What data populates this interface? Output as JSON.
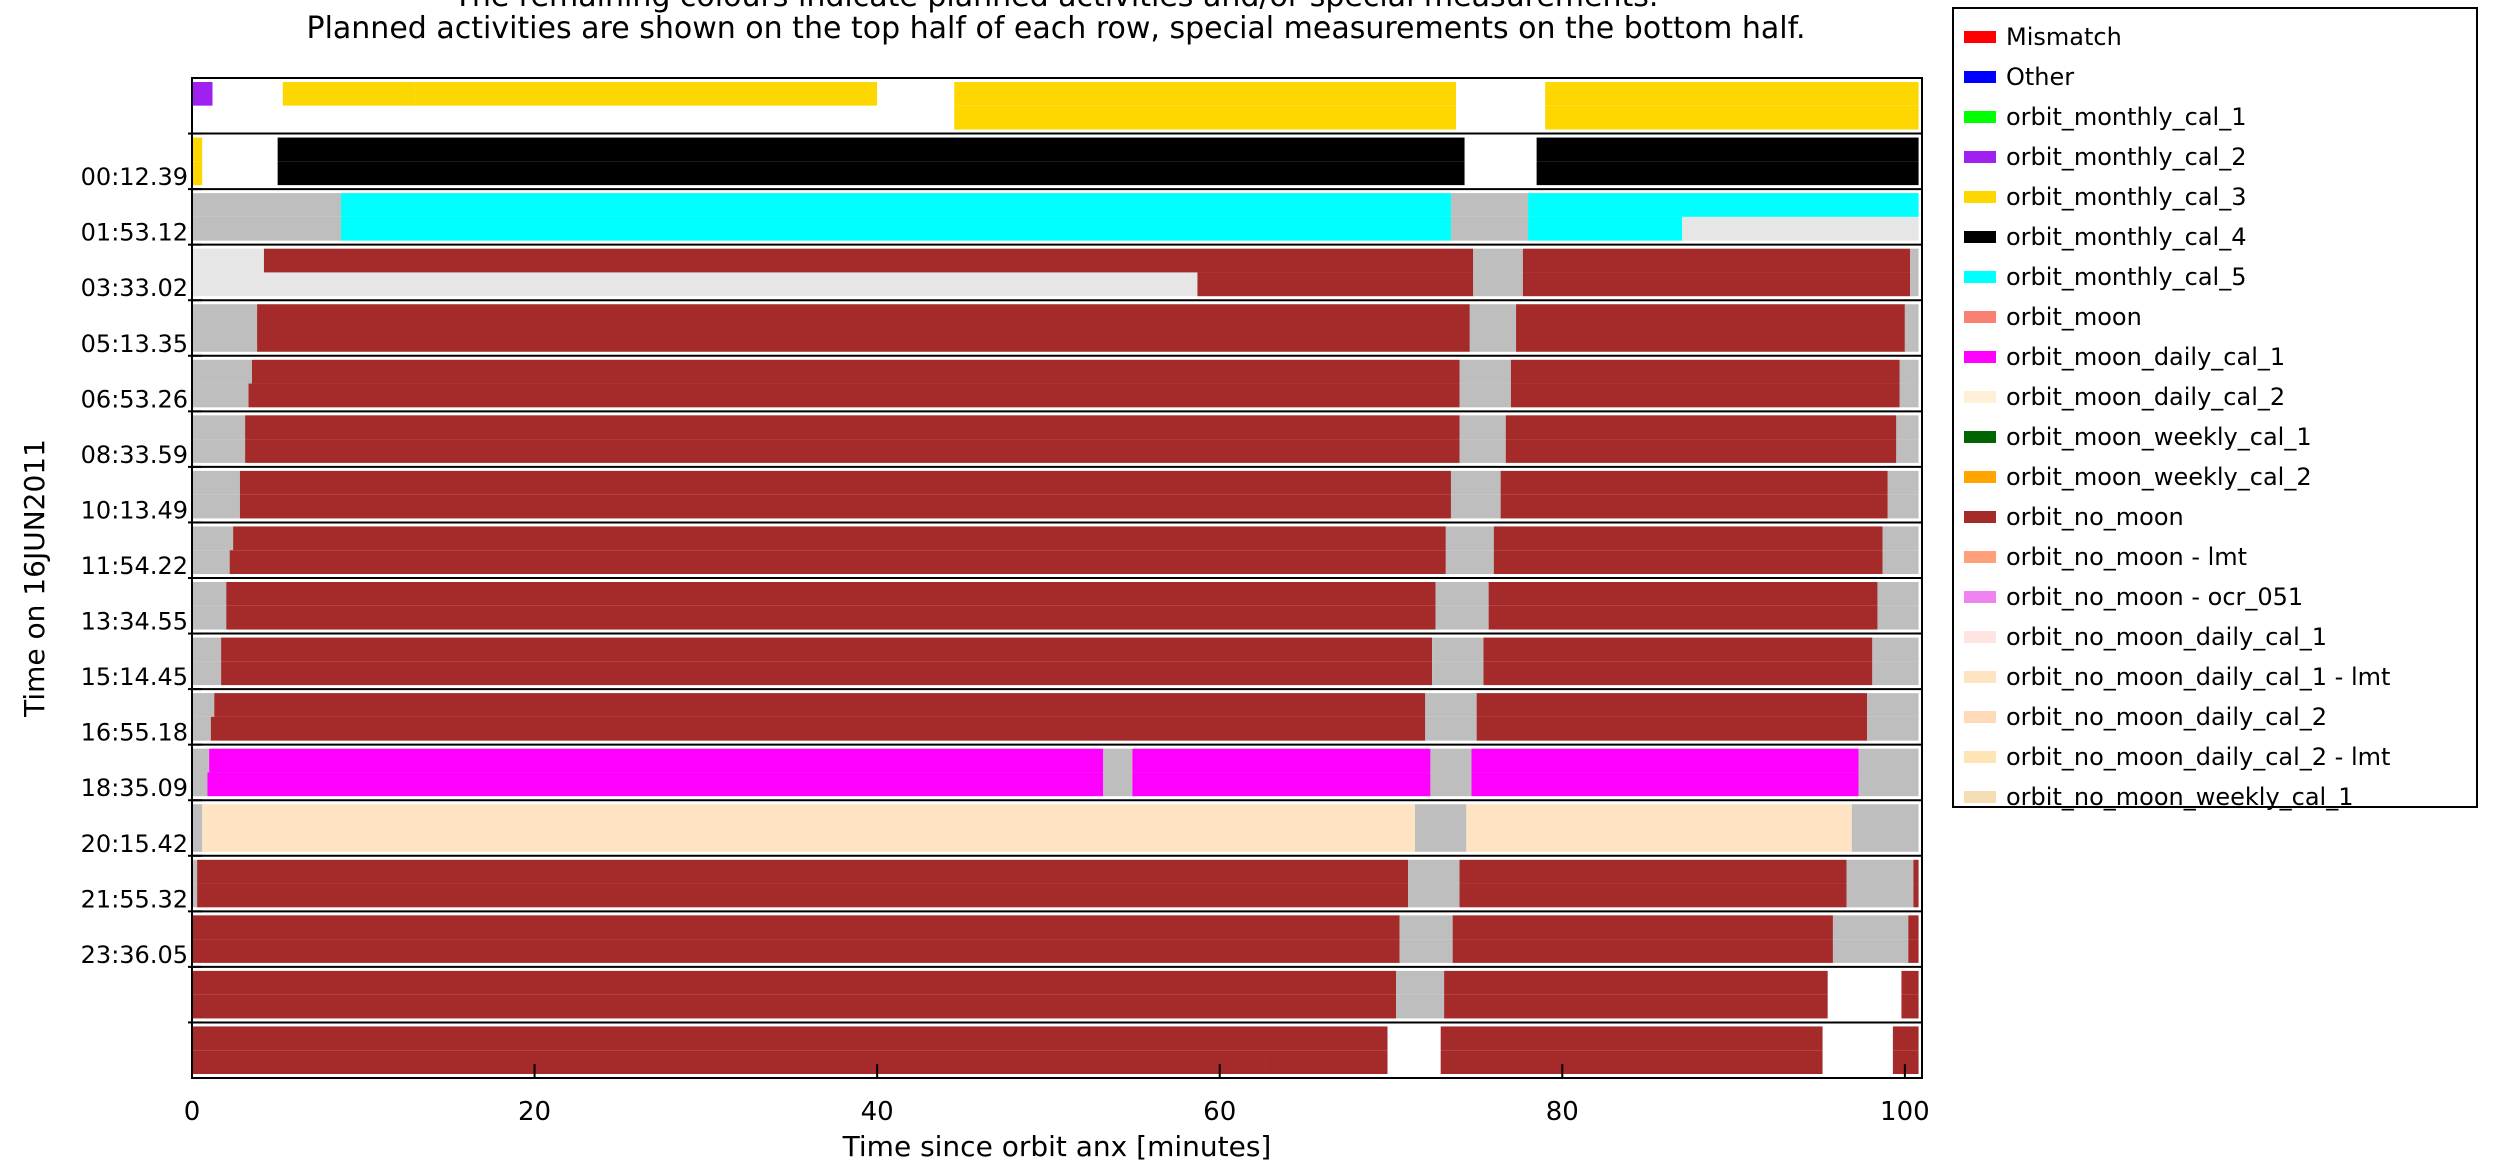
{
  "chart_data": {
    "type": "timeline",
    "title_lines": [
      "The remaining colours indicate planned activities and/or special measurements.",
      "Planned activities are shown on the top half of each row, special measurements on the bottom half."
    ],
    "xlabel": "Time since orbit anx [minutes]",
    "ylabel": "Time on 16JUN2011",
    "xlim": [
      0,
      101
    ],
    "x_ticks": [
      0,
      20,
      40,
      60,
      80,
      100
    ],
    "row_labels": [
      "",
      "00:12.39",
      "01:53.12",
      "03:33.02",
      "05:13.35",
      "06:53.26",
      "08:33.59",
      "10:13.49",
      "11:54.22",
      "13:34.55",
      "15:14.45",
      "16:55.18",
      "18:35.09",
      "20:15.42",
      "21:55.32",
      "23:36.05",
      "",
      ""
    ],
    "legend": [
      {
        "label": "Mismatch",
        "color": "#ff0000"
      },
      {
        "label": "Other",
        "color": "#0000ff"
      },
      {
        "label": "orbit_monthly_cal_1",
        "color": "#00ff00"
      },
      {
        "label": "orbit_monthly_cal_2",
        "color": "#a020f0"
      },
      {
        "label": "orbit_monthly_cal_3",
        "color": "#ffd700"
      },
      {
        "label": "orbit_monthly_cal_4",
        "color": "#000000"
      },
      {
        "label": "orbit_monthly_cal_5",
        "color": "#00ffff"
      },
      {
        "label": "orbit_moon",
        "color": "#fa8072"
      },
      {
        "label": "orbit_moon_daily_cal_1",
        "color": "#ff00ff"
      },
      {
        "label": "orbit_moon_daily_cal_2",
        "color": "#fff0d8"
      },
      {
        "label": "orbit_moon_weekly_cal_1",
        "color": "#006400"
      },
      {
        "label": "orbit_moon_weekly_cal_2",
        "color": "#ffa500"
      },
      {
        "label": "orbit_no_moon",
        "color": "#a52a2a"
      },
      {
        "label": "orbit_no_moon - lmt",
        "color": "#ffa07a"
      },
      {
        "label": "orbit_no_moon - ocr_051",
        "color": "#ee82ee"
      },
      {
        "label": "orbit_no_moon_daily_cal_1",
        "color": "#ffe4e1"
      },
      {
        "label": "orbit_no_moon_daily_cal_1 - lmt",
        "color": "#ffe4c4"
      },
      {
        "label": "orbit_no_moon_daily_cal_2",
        "color": "#ffdab9"
      },
      {
        "label": "orbit_no_moon_daily_cal_2 - lmt",
        "color": "#ffe4b5"
      },
      {
        "label": "orbit_no_moon_weekly_cal_1",
        "color": "#f5deb3"
      }
    ],
    "rows": [
      {
        "top": [
          [
            0,
            1.2,
            "#a020f0"
          ],
          [
            1.2,
            5.3,
            "#ffffff"
          ],
          [
            5.3,
            13,
            "#ffd700"
          ],
          [
            13,
            40,
            "#ffd700"
          ],
          [
            40,
            44.5,
            "#ffffff"
          ],
          [
            44.5,
            73.8,
            "#ffd700"
          ],
          [
            73.8,
            79,
            "#ffffff"
          ],
          [
            79,
            100.8,
            "#ffd700"
          ]
        ],
        "bottom": [
          [
            0,
            44.5,
            "#ffffff"
          ],
          [
            44.5,
            73.8,
            "#ffd700"
          ],
          [
            73.8,
            79,
            "#ffffff"
          ],
          [
            79,
            100.8,
            "#ffd700"
          ]
        ]
      },
      {
        "top": [
          [
            0,
            0.6,
            "#ffd700"
          ],
          [
            0.6,
            5,
            "#ffffff"
          ],
          [
            5,
            74.3,
            "#000000"
          ],
          [
            74.3,
            78.5,
            "#ffffff"
          ],
          [
            78.5,
            100.8,
            "#000000"
          ]
        ],
        "bottom": [
          [
            0,
            0.6,
            "#ffd700"
          ],
          [
            0.6,
            5,
            "#ffffff"
          ],
          [
            5,
            74.3,
            "#000000"
          ],
          [
            74.3,
            78.5,
            "#ffffff"
          ],
          [
            78.5,
            100.8,
            "#000000"
          ]
        ]
      },
      {
        "top": [
          [
            0,
            8.7,
            "#bebebe"
          ],
          [
            8.7,
            73.5,
            "#00ffff"
          ],
          [
            73.5,
            78,
            "#bebebe"
          ],
          [
            78,
            100.8,
            "#00ffff"
          ]
        ],
        "bottom": [
          [
            0,
            8.7,
            "#bebebe"
          ],
          [
            8.7,
            73.5,
            "#00ffff"
          ],
          [
            73.5,
            78,
            "#bebebe"
          ],
          [
            78,
            87,
            "#00ffff"
          ],
          [
            87,
            100.8,
            "#e6e6e6"
          ]
        ]
      },
      {
        "top": [
          [
            0,
            4.2,
            "#e6e6e6"
          ],
          [
            4.2,
            74.8,
            "#a52a2a"
          ],
          [
            74.8,
            77.7,
            "#bebebe"
          ],
          [
            77.7,
            100.3,
            "#a52a2a"
          ],
          [
            100.3,
            100.8,
            "#bebebe"
          ]
        ],
        "bottom": [
          [
            0,
            58.7,
            "#e6e6e6"
          ],
          [
            58.7,
            74.8,
            "#a52a2a"
          ],
          [
            74.8,
            77.7,
            "#bebebe"
          ],
          [
            77.7,
            100.3,
            "#a52a2a"
          ],
          [
            100.3,
            100.8,
            "#bebebe"
          ]
        ]
      },
      {
        "top": [
          [
            0,
            3.8,
            "#bebebe"
          ],
          [
            3.8,
            74.6,
            "#a52a2a"
          ],
          [
            74.6,
            77.3,
            "#bebebe"
          ],
          [
            77.3,
            100,
            "#a52a2a"
          ],
          [
            100,
            100.8,
            "#bebebe"
          ]
        ],
        "bottom": [
          [
            0,
            3.8,
            "#bebebe"
          ],
          [
            3.8,
            74.6,
            "#a52a2a"
          ],
          [
            74.6,
            77.3,
            "#bebebe"
          ],
          [
            77.3,
            100,
            "#a52a2a"
          ],
          [
            100,
            100.8,
            "#bebebe"
          ]
        ]
      },
      {
        "top": [
          [
            0,
            3.5,
            "#bebebe"
          ],
          [
            3.5,
            74,
            "#a52a2a"
          ],
          [
            74,
            77,
            "#bebebe"
          ],
          [
            77,
            99.7,
            "#a52a2a"
          ],
          [
            99.7,
            100.8,
            "#bebebe"
          ]
        ],
        "bottom": [
          [
            0,
            3.3,
            "#bebebe"
          ],
          [
            3.3,
            74,
            "#a52a2a"
          ],
          [
            74,
            77,
            "#bebebe"
          ],
          [
            77,
            99.7,
            "#a52a2a"
          ],
          [
            99.7,
            100.8,
            "#bebebe"
          ]
        ]
      },
      {
        "top": [
          [
            0,
            3.1,
            "#bebebe"
          ],
          [
            3.1,
            74,
            "#a52a2a"
          ],
          [
            74,
            76.7,
            "#bebebe"
          ],
          [
            76.7,
            99.5,
            "#a52a2a"
          ],
          [
            99.5,
            100.8,
            "#bebebe"
          ]
        ],
        "bottom": [
          [
            0,
            3.1,
            "#bebebe"
          ],
          [
            3.1,
            74,
            "#a52a2a"
          ],
          [
            74,
            76.7,
            "#bebebe"
          ],
          [
            76.7,
            99.5,
            "#a52a2a"
          ],
          [
            99.5,
            100.8,
            "#bebebe"
          ]
        ]
      },
      {
        "top": [
          [
            0,
            2.8,
            "#bebebe"
          ],
          [
            2.8,
            73.5,
            "#a52a2a"
          ],
          [
            73.5,
            76.4,
            "#bebebe"
          ],
          [
            76.4,
            99,
            "#a52a2a"
          ],
          [
            99,
            100.8,
            "#bebebe"
          ]
        ],
        "bottom": [
          [
            0,
            2.8,
            "#bebebe"
          ],
          [
            2.8,
            73.5,
            "#a52a2a"
          ],
          [
            73.5,
            76.4,
            "#bebebe"
          ],
          [
            76.4,
            99,
            "#a52a2a"
          ],
          [
            99,
            100.8,
            "#bebebe"
          ]
        ]
      },
      {
        "top": [
          [
            0,
            2.4,
            "#bebebe"
          ],
          [
            2.4,
            73.2,
            "#a52a2a"
          ],
          [
            73.2,
            76,
            "#bebebe"
          ],
          [
            76,
            98.7,
            "#a52a2a"
          ],
          [
            98.7,
            100.8,
            "#bebebe"
          ]
        ],
        "bottom": [
          [
            0,
            2.2,
            "#bebebe"
          ],
          [
            2.2,
            73.2,
            "#a52a2a"
          ],
          [
            73.2,
            76,
            "#bebebe"
          ],
          [
            76,
            98.7,
            "#a52a2a"
          ],
          [
            98.7,
            100.8,
            "#bebebe"
          ]
        ]
      },
      {
        "top": [
          [
            0,
            2,
            "#bebebe"
          ],
          [
            2,
            72.6,
            "#a52a2a"
          ],
          [
            72.6,
            75.7,
            "#bebebe"
          ],
          [
            75.7,
            98.4,
            "#a52a2a"
          ],
          [
            98.4,
            100.8,
            "#bebebe"
          ]
        ],
        "bottom": [
          [
            0,
            2,
            "#bebebe"
          ],
          [
            2,
            72.6,
            "#a52a2a"
          ],
          [
            72.6,
            75.7,
            "#bebebe"
          ],
          [
            75.7,
            98.4,
            "#a52a2a"
          ],
          [
            98.4,
            100.8,
            "#bebebe"
          ]
        ]
      },
      {
        "top": [
          [
            0,
            1.7,
            "#bebebe"
          ],
          [
            1.7,
            72.4,
            "#a52a2a"
          ],
          [
            72.4,
            75.4,
            "#bebebe"
          ],
          [
            75.4,
            98.1,
            "#a52a2a"
          ],
          [
            98.1,
            100.8,
            "#bebebe"
          ]
        ],
        "bottom": [
          [
            0,
            1.7,
            "#bebebe"
          ],
          [
            1.7,
            72.4,
            "#a52a2a"
          ],
          [
            72.4,
            75.4,
            "#bebebe"
          ],
          [
            75.4,
            98.1,
            "#a52a2a"
          ],
          [
            98.1,
            100.8,
            "#bebebe"
          ]
        ]
      },
      {
        "top": [
          [
            0,
            1.3,
            "#bebebe"
          ],
          [
            1.3,
            72,
            "#a52a2a"
          ],
          [
            72,
            75,
            "#bebebe"
          ],
          [
            75,
            97.8,
            "#a52a2a"
          ],
          [
            97.8,
            100.8,
            "#bebebe"
          ]
        ],
        "bottom": [
          [
            0,
            1.1,
            "#bebebe"
          ],
          [
            1.1,
            72,
            "#a52a2a"
          ],
          [
            72,
            75,
            "#bebebe"
          ],
          [
            75,
            97.8,
            "#a52a2a"
          ],
          [
            97.8,
            100.8,
            "#bebebe"
          ]
        ]
      },
      {
        "top": [
          [
            0,
            1,
            "#bebebe"
          ],
          [
            1,
            53.2,
            "#ff00ff"
          ],
          [
            53.2,
            54.9,
            "#bebebe"
          ],
          [
            54.9,
            72.3,
            "#ff00ff"
          ],
          [
            72.3,
            74.7,
            "#bebebe"
          ],
          [
            74.7,
            97.3,
            "#ff00ff"
          ],
          [
            97.3,
            100.8,
            "#bebebe"
          ]
        ],
        "bottom": [
          [
            0,
            0.9,
            "#bebebe"
          ],
          [
            0.9,
            53.2,
            "#ff00ff"
          ],
          [
            53.2,
            54.9,
            "#bebebe"
          ],
          [
            54.9,
            72.3,
            "#ff00ff"
          ],
          [
            72.3,
            74.7,
            "#bebebe"
          ],
          [
            74.7,
            97.3,
            "#ff00ff"
          ],
          [
            97.3,
            100.8,
            "#bebebe"
          ]
        ]
      },
      {
        "top": [
          [
            0,
            0.6,
            "#bebebe"
          ],
          [
            0.6,
            71.4,
            "#ffe4c4"
          ],
          [
            71.4,
            74.4,
            "#bebebe"
          ],
          [
            74.4,
            96.9,
            "#ffe4c4"
          ],
          [
            96.9,
            100.8,
            "#bebebe"
          ]
        ],
        "bottom": [
          [
            0,
            0.6,
            "#bebebe"
          ],
          [
            0.6,
            71.4,
            "#ffe4c4"
          ],
          [
            71.4,
            74.4,
            "#bebebe"
          ],
          [
            74.4,
            96.9,
            "#ffe4c4"
          ],
          [
            96.9,
            100.8,
            "#bebebe"
          ]
        ]
      },
      {
        "top": [
          [
            0,
            0.3,
            "#bebebe"
          ],
          [
            0.3,
            71,
            "#a52a2a"
          ],
          [
            71,
            74,
            "#bebebe"
          ],
          [
            74,
            96.6,
            "#a52a2a"
          ],
          [
            96.6,
            100.5,
            "#bebebe"
          ],
          [
            100.5,
            100.8,
            "#a52a2a"
          ]
        ],
        "bottom": [
          [
            0,
            0.3,
            "#bebebe"
          ],
          [
            0.3,
            71,
            "#a52a2a"
          ],
          [
            71,
            74,
            "#bebebe"
          ],
          [
            74,
            96.6,
            "#a52a2a"
          ],
          [
            96.6,
            100.5,
            "#bebebe"
          ],
          [
            100.5,
            100.8,
            "#a52a2a"
          ]
        ]
      },
      {
        "top": [
          [
            0,
            70.5,
            "#a52a2a"
          ],
          [
            70.5,
            73.6,
            "#bebebe"
          ],
          [
            73.6,
            95.8,
            "#a52a2a"
          ],
          [
            95.8,
            100.2,
            "#bebebe"
          ],
          [
            100.2,
            100.8,
            "#a52a2a"
          ]
        ],
        "bottom": [
          [
            0,
            70.5,
            "#a52a2a"
          ],
          [
            70.5,
            73.6,
            "#bebebe"
          ],
          [
            73.6,
            95.8,
            "#a52a2a"
          ],
          [
            95.8,
            100.2,
            "#bebebe"
          ],
          [
            100.2,
            100.8,
            "#a52a2a"
          ]
        ]
      },
      {
        "top": [
          [
            0,
            70.3,
            "#a52a2a"
          ],
          [
            70.3,
            73.1,
            "#bebebe"
          ],
          [
            73.1,
            95.5,
            "#a52a2a"
          ],
          [
            95.5,
            99.8,
            "#ffffff"
          ],
          [
            99.8,
            100.8,
            "#a52a2a"
          ]
        ],
        "bottom": [
          [
            0,
            70.3,
            "#a52a2a"
          ],
          [
            70.3,
            73.1,
            "#bebebe"
          ],
          [
            73.1,
            95.5,
            "#a52a2a"
          ],
          [
            95.5,
            99.8,
            "#ffffff"
          ],
          [
            99.8,
            100.8,
            "#a52a2a"
          ]
        ]
      },
      {
        "top": [
          [
            0,
            69.8,
            "#a52a2a"
          ],
          [
            69.8,
            72.9,
            "#ffffff"
          ],
          [
            72.9,
            95.2,
            "#a52a2a"
          ],
          [
            95.2,
            99.3,
            "#ffffff"
          ],
          [
            99.3,
            100.8,
            "#a52a2a"
          ]
        ],
        "bottom": [
          [
            0,
            62.7,
            "#a52a2a"
          ],
          [
            62.7,
            69.8,
            "#a52a2a"
          ],
          [
            69.8,
            72.9,
            "#ffffff"
          ],
          [
            72.9,
            95.2,
            "#a52a2a"
          ],
          [
            95.2,
            99.3,
            "#ffffff"
          ],
          [
            99.3,
            100.8,
            "#a52a2a"
          ]
        ]
      }
    ]
  }
}
